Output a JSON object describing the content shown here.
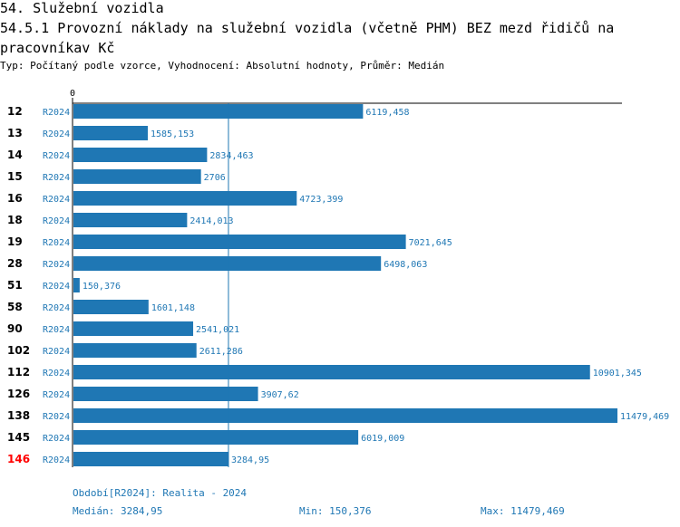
{
  "header": {
    "section": "54. Služební vozidla",
    "title": "54.5.1 Provozní náklady na služební vozidla (včetně PHM) BEZ mezd řidičů na pracovníkav Kč",
    "subtitle": "Typ: Počítaný podle vzorce, Vyhodnocení: Absolutní hodnoty, Průměr: Medián"
  },
  "colors": {
    "bar": "#1f77b4",
    "label": "#1f77b4",
    "highlight": "#ff0000",
    "axis": "#000000"
  },
  "chart_data": {
    "type": "bar",
    "orientation": "horizontal",
    "period_label": "R2024",
    "axis_zero_label": "0",
    "xlim": [
      0,
      11479.469
    ],
    "median_line": 3284.95,
    "rows": [
      {
        "id": "12",
        "value": 6119.458,
        "label": "6119,458",
        "highlight": false
      },
      {
        "id": "13",
        "value": 1585.153,
        "label": "1585,153",
        "highlight": false
      },
      {
        "id": "14",
        "value": 2834.463,
        "label": "2834,463",
        "highlight": false
      },
      {
        "id": "15",
        "value": 2706,
        "label": "2706",
        "highlight": false
      },
      {
        "id": "16",
        "value": 4723.399,
        "label": "4723,399",
        "highlight": false
      },
      {
        "id": "18",
        "value": 2414.013,
        "label": "2414,013",
        "highlight": false
      },
      {
        "id": "19",
        "value": 7021.645,
        "label": "7021,645",
        "highlight": false
      },
      {
        "id": "28",
        "value": 6498.063,
        "label": "6498,063",
        "highlight": false
      },
      {
        "id": "51",
        "value": 150.376,
        "label": "150,376",
        "highlight": false
      },
      {
        "id": "58",
        "value": 1601.148,
        "label": "1601,148",
        "highlight": false
      },
      {
        "id": "90",
        "value": 2541.021,
        "label": "2541,021",
        "highlight": false
      },
      {
        "id": "102",
        "value": 2611.286,
        "label": "2611,286",
        "highlight": false
      },
      {
        "id": "112",
        "value": 10901.345,
        "label": "10901,345",
        "highlight": false
      },
      {
        "id": "126",
        "value": 3907.62,
        "label": "3907,62",
        "highlight": false
      },
      {
        "id": "138",
        "value": 11479.469,
        "label": "11479,469",
        "highlight": false
      },
      {
        "id": "145",
        "value": 6019.009,
        "label": "6019,009",
        "highlight": false
      },
      {
        "id": "146",
        "value": 3284.95,
        "label": "3284,95",
        "highlight": true
      }
    ]
  },
  "footer": {
    "period": "Období[R2024]: Realita - 2024",
    "median": "Medián: 3284,95",
    "min": "Min: 150,376",
    "max": "Max: 11479,469"
  }
}
